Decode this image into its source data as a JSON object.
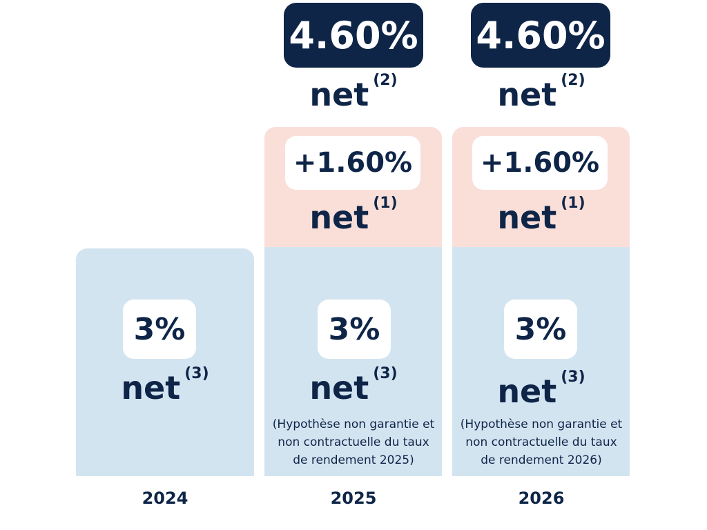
{
  "chart_data": {
    "type": "bar",
    "stacked": true,
    "categories": [
      "2024",
      "2025",
      "2026"
    ],
    "series": [
      {
        "values": [
          3,
          3,
          3
        ],
        "labels": [
          "3%",
          "3%",
          "3%"
        ],
        "suffix": "net",
        "note_ref": "(3)",
        "color": "#d3e4f1"
      },
      {
        "values": [
          0,
          1.6,
          1.6
        ],
        "labels": [
          "",
          "+1.60%",
          "+1.60%"
        ],
        "suffix": "net",
        "note_ref": "(1)",
        "color": "#fadfd9"
      }
    ],
    "totals": {
      "values": [
        null,
        4.6,
        4.6
      ],
      "labels": [
        "",
        "4.60%",
        "4.60%"
      ],
      "suffix": "net",
      "note_ref": "(2)",
      "color": "#0e2548"
    },
    "notes": [
      "",
      "(Hypothèse non garantie et non contractuelle du taux de rendement 2025)",
      "(Hypothèse non garantie et non contractuelle du taux de rendement 2026)"
    ],
    "net_label": "net"
  }
}
